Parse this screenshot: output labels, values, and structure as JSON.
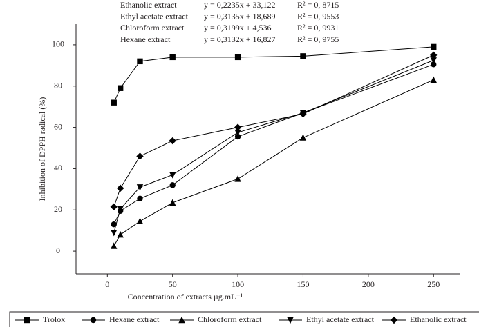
{
  "chart_data": {
    "type": "line",
    "xlabel": "Concentration of extracts µg.mL⁻¹",
    "ylabel": "Inhibition of DPPH radical (%)",
    "equations": [
      {
        "name": "Ethanolic extract",
        "equation": "y = 0,2235x + 33,122",
        "r2": "R² = 0, 8715"
      },
      {
        "name": "Ethyl acetate extract",
        "equation": "y = 0,3135x + 18,689",
        "r2": "R² = 0, 9553"
      },
      {
        "name": "Chloroform extract",
        "equation": "y = 0,3199x +  4,536",
        "r2": "R² = 0, 9931"
      },
      {
        "name": "Hexane extract",
        "equation": "y = 0,3132x + 16,827",
        "r2": "R² = 0, 9755"
      }
    ],
    "x": [
      5,
      10,
      25,
      50,
      100,
      150,
      250
    ],
    "series": [
      {
        "name": "Trolox",
        "color": "#000000",
        "marker": "square",
        "values": [
          72,
          79,
          92,
          94,
          94,
          94.5,
          99
        ]
      },
      {
        "name": "Hexane extract",
        "color": "#000000",
        "marker": "circle",
        "values": [
          13,
          19.5,
          25.5,
          32,
          55.5,
          67,
          90.5
        ]
      },
      {
        "name": "Chloroform extract",
        "color": "#000000",
        "marker": "triangle",
        "values": [
          2.5,
          8,
          14.5,
          23.5,
          35,
          55,
          83
        ]
      },
      {
        "name": "Ethyl acetate extract",
        "color": "#000000",
        "marker": "triangle-down",
        "values": [
          9,
          20.5,
          31,
          37,
          57.5,
          67,
          92.5
        ]
      },
      {
        "name": "Ethanolic extract",
        "color": "#000000",
        "marker": "diamond",
        "values": [
          21.5,
          30.5,
          46,
          53.5,
          60,
          66.5,
          95
        ]
      }
    ],
    "xlim": [
      -24,
      270
    ],
    "xticks": [
      0,
      50,
      100,
      150,
      200,
      250
    ],
    "ylim": [
      -11,
      110
    ],
    "yticks": [
      0,
      20,
      40,
      60,
      80,
      100
    ],
    "legend": "bottom"
  }
}
